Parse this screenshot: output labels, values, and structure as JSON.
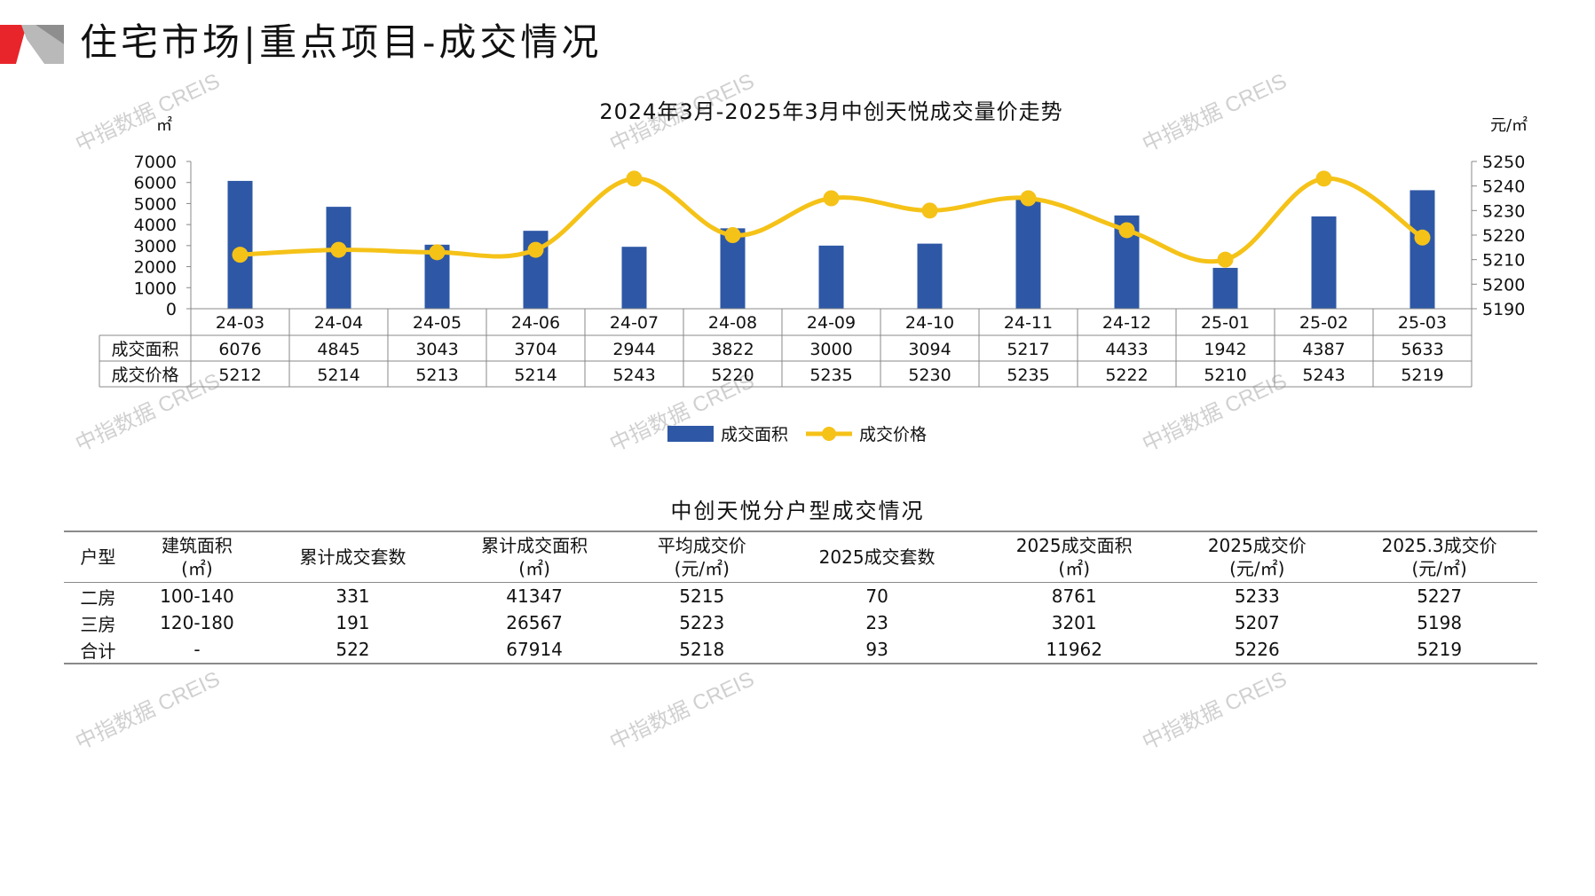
{
  "page": {
    "title": "住宅市场|重点项目-成交情况"
  },
  "watermark": "中指数据 CREIS",
  "colors": {
    "bar": "#2e58a6",
    "line": "#f5c218",
    "logo_red": "#e8252a",
    "logo_gray": "#9a9a9a"
  },
  "chart_data": {
    "type": "bar",
    "title": "2024年3月-2025年3月中创天悦成交量价走势",
    "categories": [
      "24-03",
      "24-04",
      "24-05",
      "24-06",
      "24-07",
      "24-08",
      "24-09",
      "24-10",
      "24-11",
      "24-12",
      "25-01",
      "25-02",
      "25-03"
    ],
    "series": [
      {
        "name": "成交面积",
        "type": "bar",
        "axis": "left",
        "values": [
          6076,
          4845,
          3043,
          3704,
          2944,
          3822,
          3000,
          3094,
          5217,
          4433,
          1942,
          4387,
          5633
        ]
      },
      {
        "name": "成交价格",
        "type": "line",
        "axis": "right",
        "smooth": true,
        "values": [
          5212,
          5214,
          5213,
          5214,
          5243,
          5220,
          5235,
          5230,
          5235,
          5222,
          5210,
          5243,
          5219
        ]
      }
    ],
    "y_left": {
      "unit": "㎡",
      "ylim": [
        0,
        7000
      ],
      "ticks": [
        "7000",
        "6000",
        "5000",
        "4000",
        "3000",
        "2000",
        "1000",
        "0"
      ]
    },
    "y_right": {
      "unit": "元/㎡",
      "ylim": [
        5190,
        5250
      ],
      "ticks": [
        "5250",
        "5240",
        "5230",
        "5220",
        "5210",
        "5200",
        "5190"
      ]
    },
    "data_table": true,
    "legend": {
      "placement": "bottom",
      "items": [
        "成交面积",
        "成交价格"
      ]
    },
    "grid": false
  },
  "table2": {
    "title": "中创天悦分户型成交情况",
    "headers": [
      [
        "户型",
        ""
      ],
      [
        "建筑面积",
        "(㎡)"
      ],
      [
        "累计成交套数",
        ""
      ],
      [
        "累计成交面积",
        "(㎡)"
      ],
      [
        "平均成交价",
        "(元/㎡)"
      ],
      [
        "2025成交套数",
        ""
      ],
      [
        "2025成交面积",
        "(㎡)"
      ],
      [
        "2025成交价",
        "(元/㎡)"
      ],
      [
        "2025.3成交价",
        "(元/㎡)"
      ]
    ],
    "rows": [
      [
        "二房",
        "100-140",
        "331",
        "41347",
        "5215",
        "70",
        "8761",
        "5233",
        "5227"
      ],
      [
        "三房",
        "120-180",
        "191",
        "26567",
        "5223",
        "23",
        "3201",
        "5207",
        "5198"
      ],
      [
        "合计",
        "-",
        "522",
        "67914",
        "5218",
        "93",
        "11962",
        "5226",
        "5219"
      ]
    ]
  }
}
